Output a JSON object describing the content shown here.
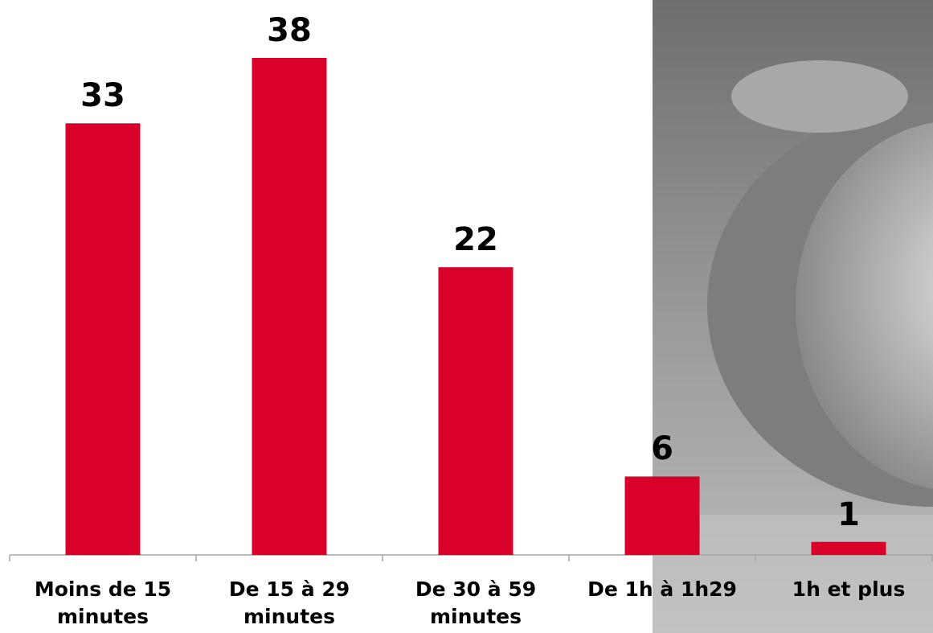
{
  "chart_data": {
    "type": "bar",
    "categories": [
      "Moins de 15 minutes",
      "De 15 à 29 minutes",
      "De 30 à 59 minutes",
      "De 1h à 1h29",
      "1h et plus"
    ],
    "values": [
      33,
      38,
      22,
      6,
      1
    ],
    "color": "#d9002a"
  }
}
